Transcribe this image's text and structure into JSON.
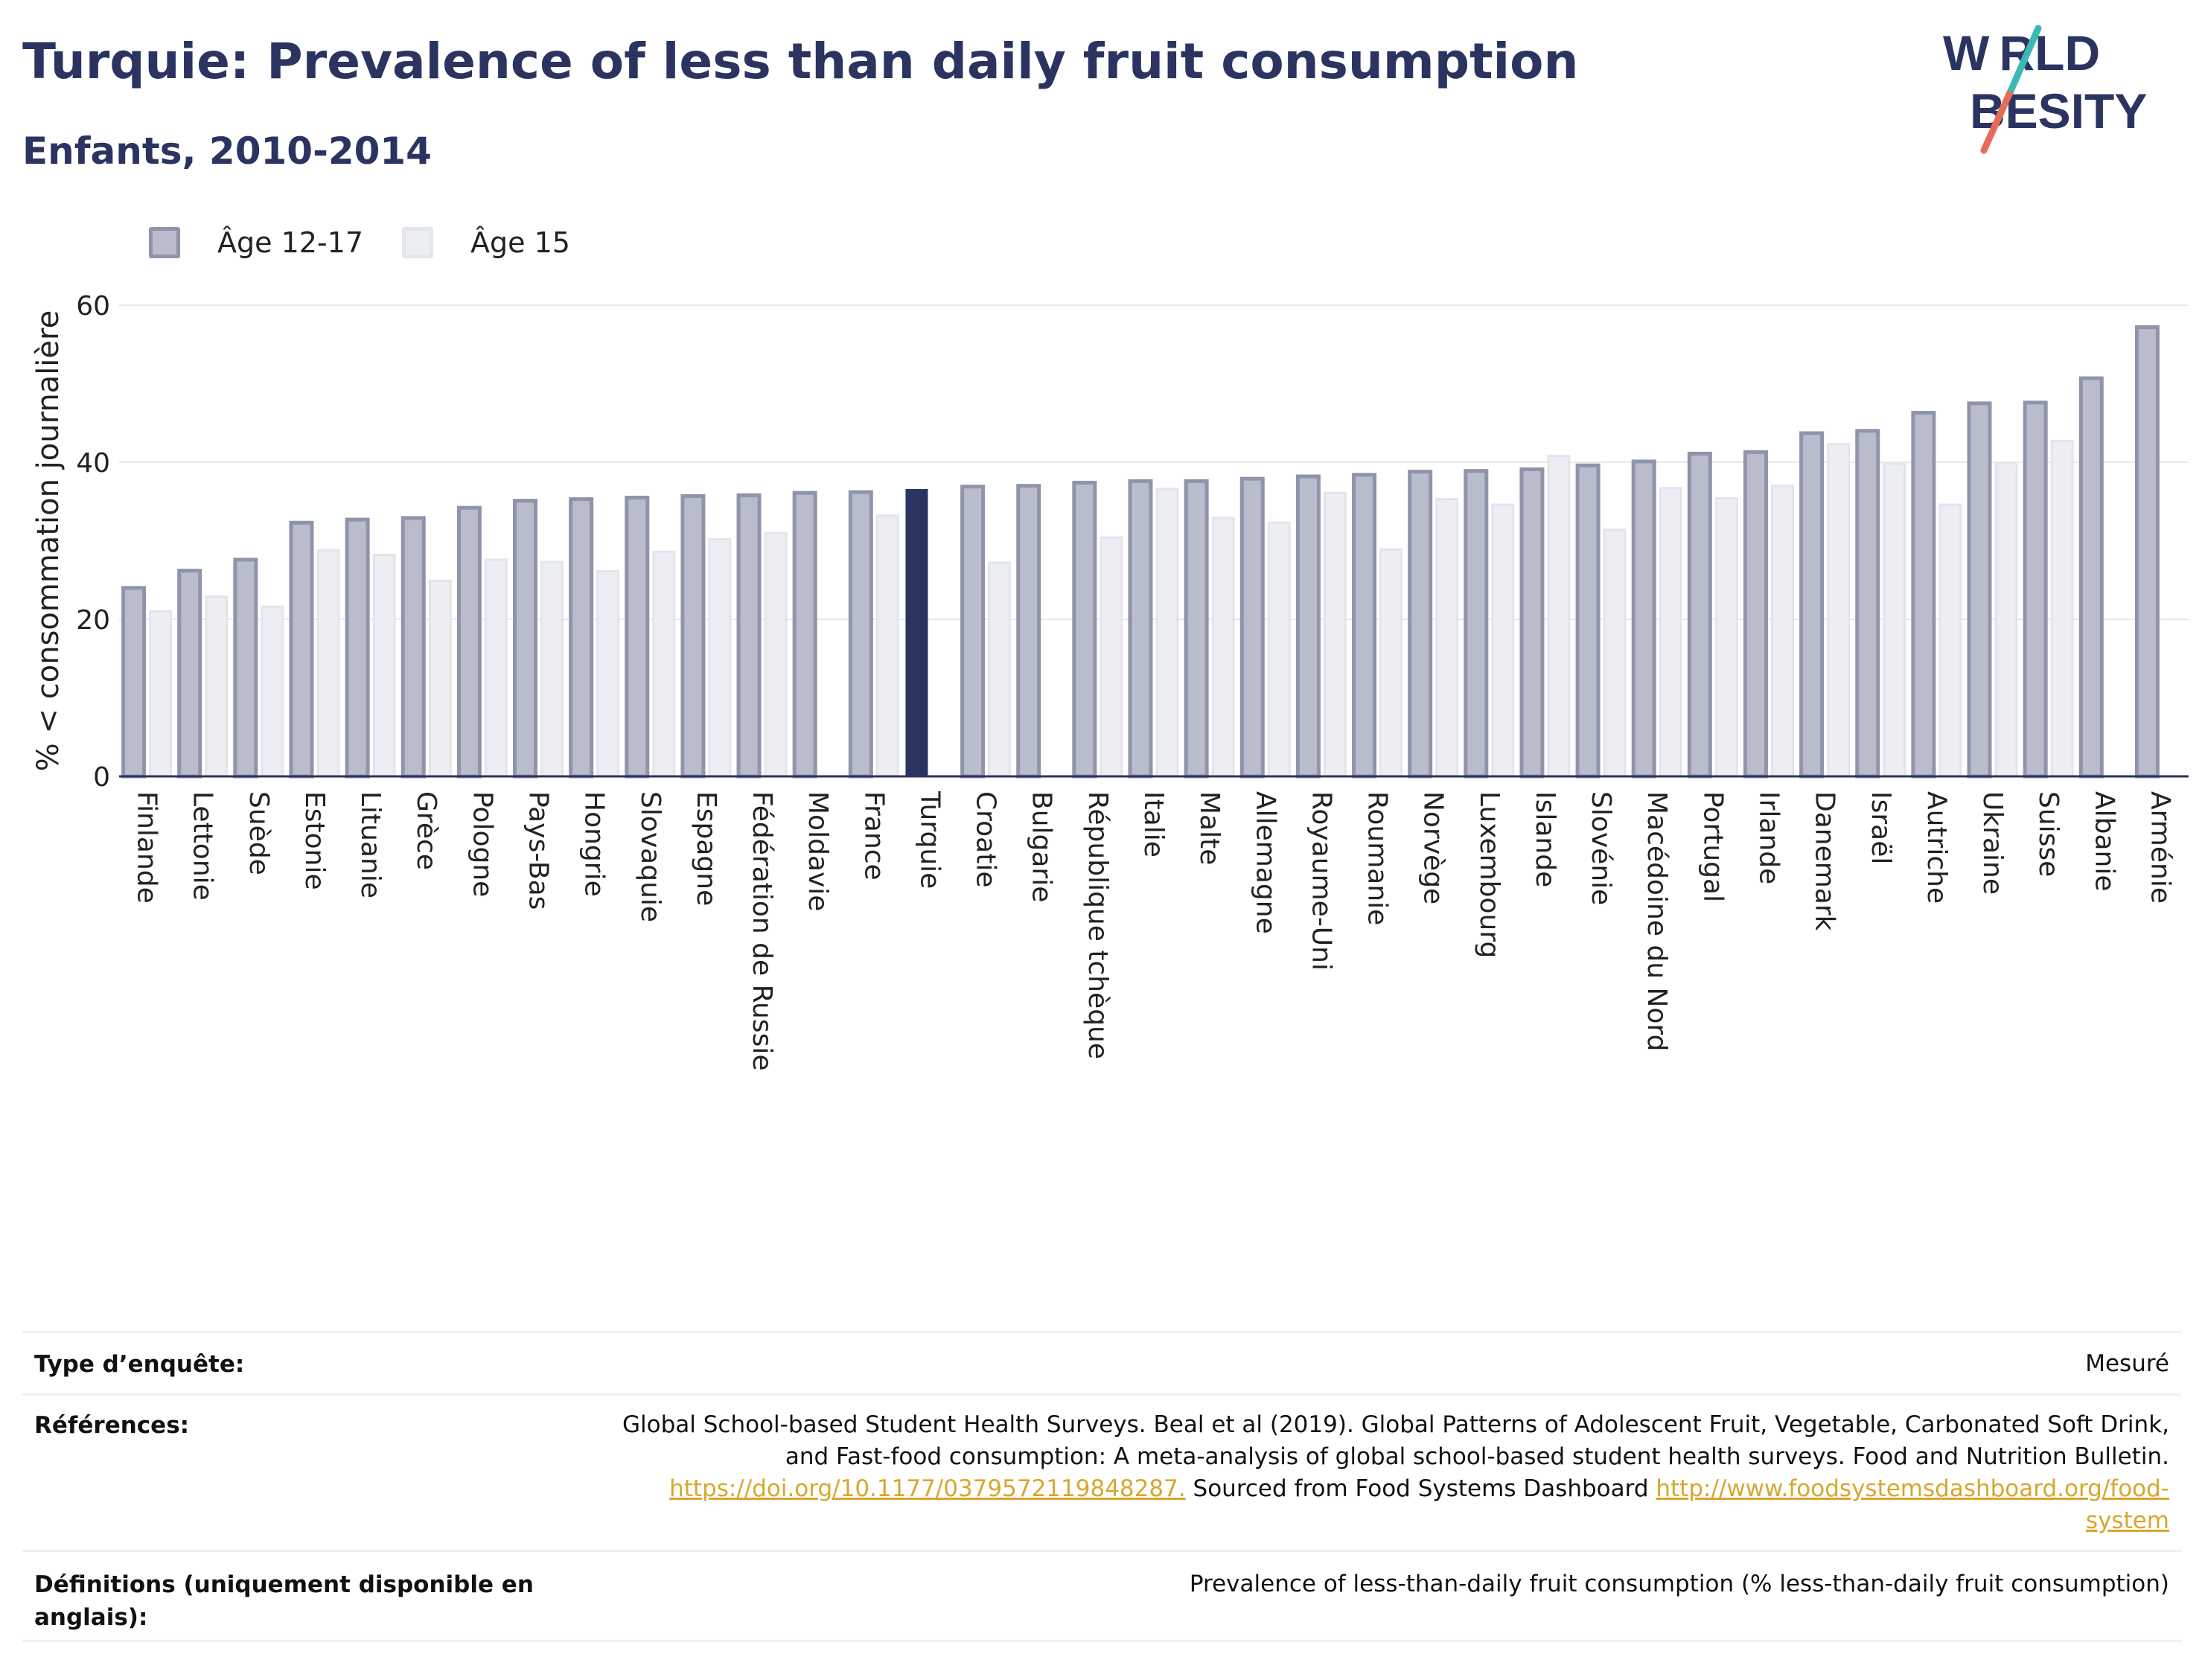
{
  "header": {
    "title": "Turquie: Prevalence of less than daily fruit consumption",
    "subtitle": "Enfants, 2010-2014"
  },
  "logo": {
    "line1": "W RLD",
    "line2": "BESITY",
    "accent_teal": "#3cb9b4",
    "accent_red": "#e86b5a",
    "text_color": "#2b3461"
  },
  "colors": {
    "series1": "#b9bccb",
    "series1_edge": "#8f94ab",
    "series2": "#eceef3",
    "series2_edge": "#e3e5ec",
    "highlight": "#2b3461",
    "axis": "#2b3461",
    "grid": "#e6e8ee"
  },
  "chart_data": {
    "type": "bar",
    "ylabel": "% < consommation journalière",
    "ylim": [
      0,
      60
    ],
    "yticks": [
      0,
      20,
      40,
      60
    ],
    "grid": true,
    "legend_position": "top-left",
    "highlight_category": "Turquie",
    "categories": [
      "Finlande",
      "Lettonie",
      "Suède",
      "Estonie",
      "Lituanie",
      "Grèce",
      "Pologne",
      "Pays-Bas",
      "Hongrie",
      "Slovaquie",
      "Espagne",
      "Fédération de Russie",
      "Moldavie",
      "France",
      "Turquie",
      "Croatie",
      "Bulgarie",
      "République tchèque",
      "Italie",
      "Malte",
      "Allemagne",
      "Royaume-Uni",
      "Roumanie",
      "Norvège",
      "Luxembourg",
      "Islande",
      "Slovénie",
      "Macédoine du Nord",
      "Portugal",
      "Irlande",
      "Danemark",
      "Israël",
      "Autriche",
      "Ukraine",
      "Suisse",
      "Albanie",
      "Arménie"
    ],
    "series": [
      {
        "name": "Âge 12-17",
        "values": [
          24.0,
          26.2,
          27.6,
          32.3,
          32.7,
          32.9,
          34.2,
          35.1,
          35.3,
          35.5,
          35.7,
          35.8,
          36.1,
          36.2,
          36.5,
          36.9,
          37.0,
          37.4,
          37.6,
          37.6,
          37.9,
          38.2,
          38.4,
          38.8,
          38.9,
          39.1,
          39.6,
          40.1,
          41.1,
          41.3,
          43.7,
          44.0,
          46.3,
          47.5,
          47.6,
          50.7,
          57.2
        ]
      },
      {
        "name": "Âge 15",
        "values": [
          21.0,
          22.9,
          21.6,
          28.8,
          28.2,
          24.9,
          27.6,
          27.3,
          26.1,
          28.6,
          30.2,
          31.0,
          null,
          33.2,
          null,
          27.2,
          null,
          30.4,
          36.6,
          32.9,
          32.3,
          36.1,
          28.9,
          35.3,
          34.6,
          40.8,
          31.4,
          36.7,
          35.4,
          37.0,
          42.3,
          39.8,
          34.6,
          39.9,
          42.7,
          null,
          null
        ]
      }
    ]
  },
  "info": {
    "survey_type_label": "Type d’enquête:",
    "survey_type_value": "Mesuré",
    "references_label": "Références:",
    "references_line1": "Global School-based Student Health Surveys. Beal et al (2019). Global Patterns of Adolescent Fruit, Vegetable, Carbonated Soft Drink,",
    "references_line2": "and Fast-food consumption: A meta-analysis of global school-based student health surveys. Food and Nutrition Bulletin.",
    "references_link1": "https://doi.org/10.1177/0379572119848287.",
    "references_mid": " Sourced from Food Systems Dashboard ",
    "references_link2": "http://www.foodsystemsdashboard.org/food-",
    "references_link2_cont": "system",
    "definitions_label_line1": "Définitions (uniquement disponible en",
    "definitions_label_line2": "anglais):",
    "definitions_value": "Prevalence of less-than-daily fruit consumption (% less-than-daily fruit consumption)"
  }
}
